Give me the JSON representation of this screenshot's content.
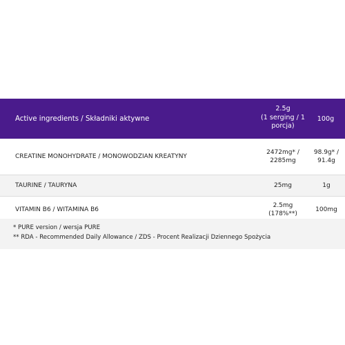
{
  "header": {
    "col1": "Active ingredients / Składniki aktywne",
    "col2_line1": "2.5g",
    "col2_line2": "(1 serging / 1",
    "col2_line3": "porcja)",
    "col3": "100g"
  },
  "rows": [
    {
      "name": "CREATINE MONOHYDRATE / MONOWODZIAN KREATYNY",
      "serving_line1": "2472mg* /",
      "serving_line2": "2285mg",
      "per100_line1": "98.9g* /",
      "per100_line2": "91.4g"
    },
    {
      "name": "TAURINE / TAURYNA",
      "serving_line1": "25mg",
      "per100_line1": "1g"
    },
    {
      "name": "VITAMIN B6 / WITAMINA B6",
      "serving_line1": "2.5mg",
      "serving_line2": "(178%**)",
      "per100_line1": "100mg"
    }
  ],
  "footnotes": {
    "fn1": "* PURE version / wersja PURE",
    "fn2": "** RDA - Recommended Daily Allowance / ZDS - Procent Realizacji Dziennego Spożycia"
  },
  "colors": {
    "header_bg": "#4a1b8c",
    "header_text": "#ffffff",
    "alt_row_bg": "#f3f3f3"
  }
}
